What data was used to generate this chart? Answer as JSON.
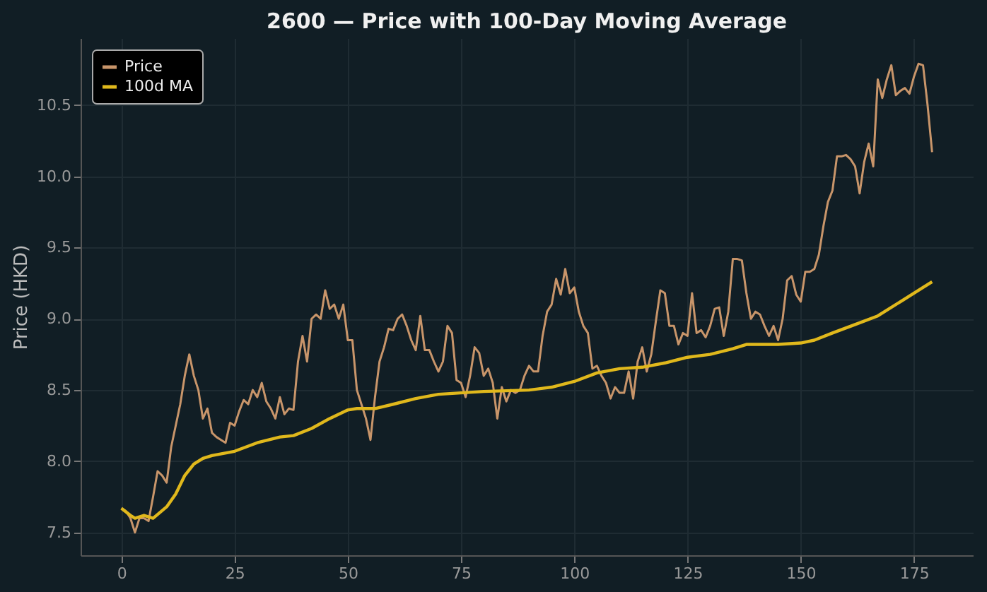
{
  "chart_data": {
    "type": "line",
    "title": "2600 — Price with 100-Day Moving Average",
    "ylabel": "Price (HKD)",
    "xlim": [
      -9,
      188
    ],
    "xticks": [
      0,
      25,
      50,
      75,
      100,
      125,
      150,
      175
    ],
    "ylim": [
      7.34,
      10.97
    ],
    "yticks": [
      7.5,
      {
        "value": 8,
        "label": "8.0"
      },
      8.5,
      {
        "value": 9,
        "label": "9.0"
      },
      9.5,
      {
        "value": 10,
        "label": "10.0"
      },
      10.5
    ],
    "grid": true,
    "legend": "top left",
    "line_style": "solid",
    "marker": "none",
    "series": [
      {
        "name": "Price",
        "color": "#c8956a",
        "x": [
          0,
          1,
          2,
          3,
          4,
          5,
          6,
          7,
          8,
          9,
          10,
          11,
          12,
          13,
          14,
          15,
          16,
          17,
          18,
          19,
          20,
          21,
          22,
          23,
          24,
          25,
          26,
          27,
          28,
          29,
          30,
          31,
          32,
          33,
          34,
          35,
          36,
          37,
          38,
          39,
          40,
          41,
          42,
          43,
          44,
          45,
          46,
          47,
          48,
          49,
          50,
          51,
          52,
          53,
          54,
          55,
          56,
          57,
          58,
          59,
          60,
          61,
          62,
          63,
          64,
          65,
          66,
          67,
          68,
          69,
          70,
          71,
          72,
          73,
          74,
          75,
          76,
          77,
          78,
          79,
          80,
          81,
          82,
          83,
          84,
          85,
          86,
          87,
          88,
          89,
          90,
          91,
          92,
          93,
          94,
          95,
          96,
          97,
          98,
          99,
          100,
          101,
          102,
          103,
          104,
          105,
          106,
          107,
          108,
          109,
          110,
          111,
          112,
          113,
          114,
          115,
          116,
          117,
          118,
          119,
          120,
          121,
          122,
          123,
          124,
          125,
          126,
          127,
          128,
          129,
          130,
          131,
          132,
          133,
          134,
          135,
          136,
          137,
          138,
          139,
          140,
          141,
          142,
          143,
          144,
          145,
          146,
          147,
          148,
          149,
          150,
          151,
          152,
          153,
          154,
          155,
          156,
          157,
          158,
          159,
          160,
          161,
          162,
          163,
          164,
          165,
          166,
          167,
          168,
          169,
          170,
          171,
          172,
          173,
          174,
          175,
          176,
          177,
          178,
          179
        ],
        "values": [
          7.67,
          7.65,
          7.6,
          7.5,
          7.6,
          7.6,
          7.58,
          7.75,
          7.93,
          7.9,
          7.85,
          8.1,
          8.25,
          8.4,
          8.6,
          8.75,
          8.6,
          8.5,
          8.3,
          8.37,
          8.2,
          8.17,
          8.15,
          8.13,
          8.27,
          8.25,
          8.35,
          8.43,
          8.4,
          8.5,
          8.45,
          8.55,
          8.42,
          8.37,
          8.3,
          8.45,
          8.33,
          8.37,
          8.36,
          8.7,
          8.88,
          8.7,
          9.0,
          9.03,
          9.0,
          9.2,
          9.07,
          9.1,
          9.0,
          9.1,
          8.85,
          8.85,
          8.5,
          8.4,
          8.3,
          8.15,
          8.45,
          8.7,
          8.8,
          8.93,
          8.92,
          9.0,
          9.03,
          8.95,
          8.85,
          8.78,
          9.02,
          8.78,
          8.78,
          8.7,
          8.63,
          8.7,
          8.95,
          8.9,
          8.57,
          8.55,
          8.45,
          8.6,
          8.8,
          8.76,
          8.6,
          8.65,
          8.55,
          8.3,
          8.52,
          8.42,
          8.5,
          8.48,
          8.5,
          8.6,
          8.67,
          8.63,
          8.63,
          8.88,
          9.05,
          9.1,
          9.28,
          9.17,
          9.35,
          9.18,
          9.22,
          9.05,
          8.95,
          8.9,
          8.65,
          8.67,
          8.6,
          8.55,
          8.44,
          8.52,
          8.48,
          8.48,
          8.63,
          8.44,
          8.7,
          8.8,
          8.63,
          8.75,
          8.98,
          9.2,
          9.18,
          8.95,
          8.95,
          8.82,
          8.9,
          8.88,
          9.18,
          8.9,
          8.92,
          8.87,
          8.95,
          9.07,
          9.08,
          8.88,
          9.05,
          9.42,
          9.42,
          9.41,
          9.18,
          9.0,
          9.05,
          9.03,
          8.95,
          8.88,
          8.95,
          8.85,
          9.0,
          9.27,
          9.3,
          9.17,
          9.12,
          9.33,
          9.33,
          9.35,
          9.45,
          9.65,
          9.82,
          9.9,
          10.14,
          10.14,
          10.15,
          10.12,
          10.07,
          9.88,
          10.1,
          10.23,
          10.07,
          10.68,
          10.55,
          10.68,
          10.78,
          10.57,
          10.6,
          10.62,
          10.58,
          10.7,
          10.79,
          10.78,
          10.5,
          10.17
        ]
      },
      {
        "name": "100d MA",
        "color": "#e0b81c",
        "x": [
          0,
          2,
          3,
          5,
          7,
          10,
          12,
          14,
          16,
          18,
          20,
          25,
          30,
          35,
          38,
          42,
          46,
          50,
          52,
          56,
          60,
          65,
          70,
          75,
          80,
          90,
          95,
          100,
          105,
          110,
          115,
          120,
          125,
          130,
          135,
          138,
          145,
          150,
          153,
          157,
          162,
          167,
          172,
          177,
          179
        ],
        "values": [
          7.67,
          7.62,
          7.6,
          7.62,
          7.6,
          7.68,
          7.77,
          7.9,
          7.98,
          8.02,
          8.04,
          8.07,
          8.13,
          8.17,
          8.18,
          8.23,
          8.3,
          8.36,
          8.37,
          8.37,
          8.4,
          8.44,
          8.47,
          8.48,
          8.49,
          8.5,
          8.52,
          8.56,
          8.62,
          8.65,
          8.66,
          8.69,
          8.73,
          8.75,
          8.79,
          8.82,
          8.82,
          8.83,
          8.85,
          8.9,
          8.96,
          9.02,
          9.12,
          9.22,
          9.26
        ]
      }
    ]
  }
}
